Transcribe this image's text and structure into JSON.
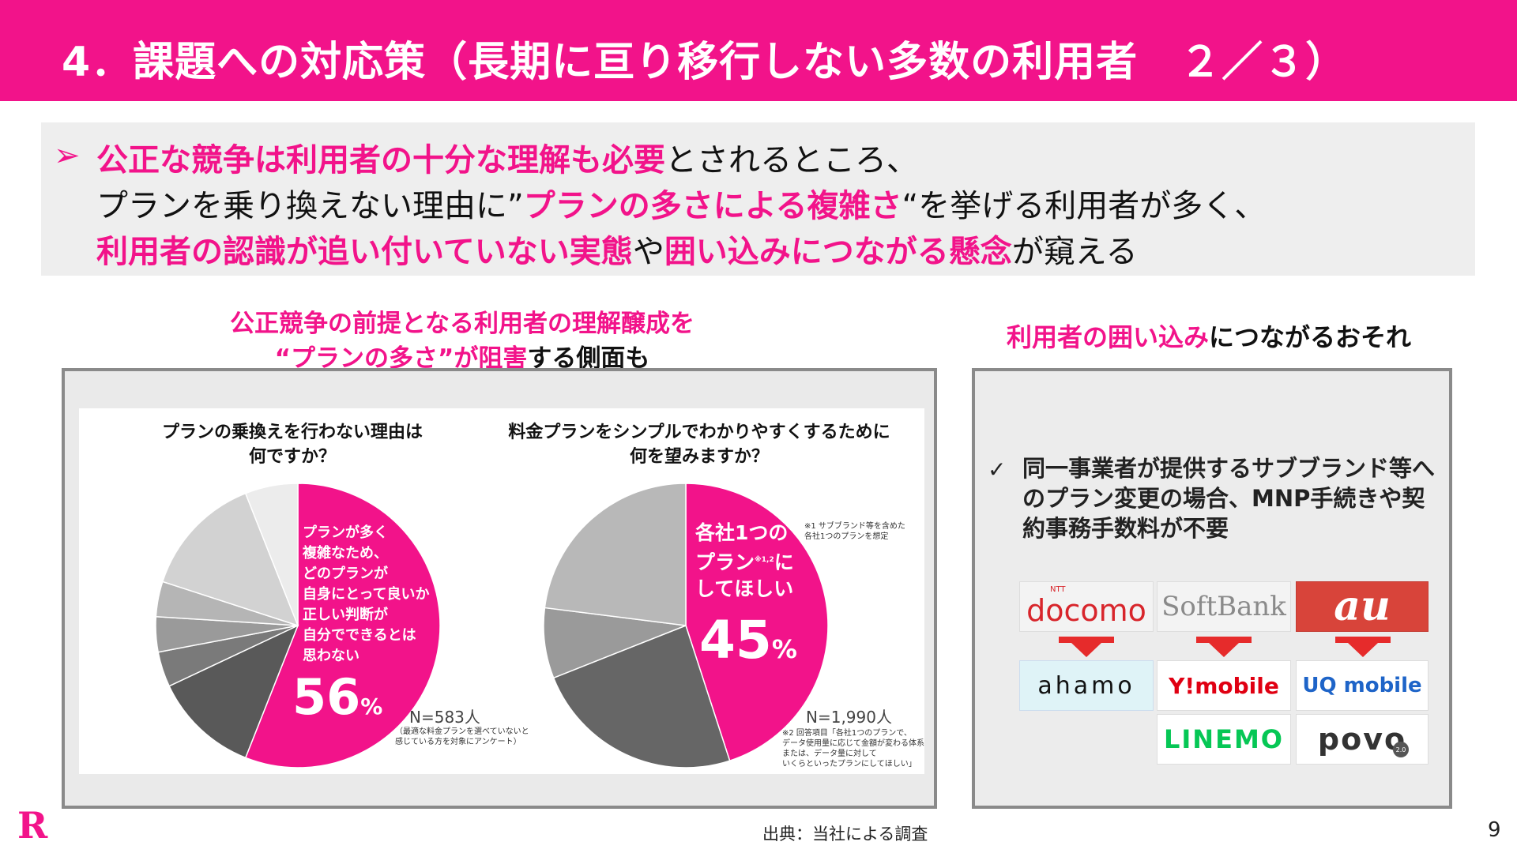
{
  "header": {
    "title": "4．課題への対応策（長期に亘り移行しない多数の利用者　２／３）"
  },
  "summary": {
    "arrow": "➢",
    "line1": [
      {
        "text": "公正な競争は利用者の十分な理解も必要",
        "highlight": true
      },
      {
        "text": "とされるところ、",
        "highlight": false
      }
    ],
    "line2": [
      {
        "text": "プランを乗り換えない理由に”",
        "highlight": false
      },
      {
        "text": "プランの多さによる複雑さ",
        "highlight": true
      },
      {
        "text": "“を挙げる利用者が多く、",
        "highlight": false
      }
    ],
    "line3": [
      {
        "text": "利用者の認識が追い付いていない実態",
        "highlight": true
      },
      {
        "text": "や",
        "highlight": false
      },
      {
        "text": "囲い込みにつながる懸念",
        "highlight": true
      },
      {
        "text": "が窺える",
        "highlight": false
      }
    ]
  },
  "left_panel": {
    "caption_line1": "公正競争の前提となる利用者の理解醸成を",
    "caption_line2_pink": "“プランの多さ”が阻害",
    "caption_line2_black": "する側面も",
    "chart1": {
      "question_line1": "プランの乗換えを行わない理由は",
      "question_line2": "何ですか？",
      "highlight_lines": [
        "プランが多く",
        "複雑なため、",
        "どのプランが",
        "自身にとって良いか",
        "正しい判断が",
        "自分でできるとは",
        "思わない"
      ],
      "percent_number": "56",
      "percent_sign": "%",
      "sample": "N=583人",
      "note_lines": [
        "（最適な料金プランを選べていないと",
        "感じている方を対象にアンケート）"
      ]
    },
    "chart2": {
      "question_line1": "料金プランをシンプルでわかりやすくするために",
      "question_line2": "何を望みますか？",
      "highlight_line1": "各社1つの",
      "highlight_line2": "プラン",
      "highlight_sup": "※1,2",
      "highlight_line2b": "に",
      "highlight_line3": "してほしい",
      "percent_number": "45",
      "percent_sign": "%",
      "sample": "N=1,990人",
      "note1_lines": [
        "※1 サブブランド等を含めた",
        "各社1つのプランを想定"
      ],
      "note2_lines": [
        "※2 回答項目「各社1つのプランで、",
        "データ使用量に応じて金額が変わる体系",
        "または、データ量に対して",
        "いくらといったプランにしてほしい」"
      ]
    }
  },
  "chart_data": [
    {
      "type": "pie",
      "title": "プランの乗換えを行わない理由は何ですか？",
      "slices": [
        {
          "label": "プランが多く複雑なため、どのプランが自身にとって良いか正しい判断が自分でできるとは思わない",
          "value": 56,
          "color": "#f2138a"
        },
        {
          "value": 12,
          "color": "#595959"
        },
        {
          "value": 4,
          "color": "#7a7a7a"
        },
        {
          "value": 4,
          "color": "#9a9a9a"
        },
        {
          "value": 4,
          "color": "#b5b5b5"
        },
        {
          "value": 14,
          "color": "#d2d2d2"
        },
        {
          "value": 6,
          "color": "#ececec"
        }
      ]
    },
    {
      "type": "pie",
      "title": "料金プランをシンプルでわかりやすくするために何を望みますか？",
      "slices": [
        {
          "label": "各社1つのプランにしてほしい",
          "value": 45,
          "color": "#f2138a"
        },
        {
          "value": 24,
          "color": "#666666"
        },
        {
          "value": 8,
          "color": "#9a9a9a"
        },
        {
          "value": 23,
          "color": "#b8b8b8"
        }
      ]
    }
  ],
  "right_panel": {
    "caption_pink": "利用者の囲い込み",
    "caption_black": "につながるおそれ",
    "check_mark": "✓",
    "bullet_lines": [
      "同一事業者が提供するサブブランド等へ",
      "のプラン変更の場合、MNP手続きや契",
      "約事務手数料が不要"
    ],
    "brands": {
      "main": [
        {
          "name": "docomo",
          "small": "NTT"
        },
        {
          "name": "SoftBank"
        },
        {
          "name": "au"
        }
      ],
      "sub": [
        {
          "name": "ahamo"
        },
        {
          "name": "Y!mobile"
        },
        {
          "name": "UQ mobile"
        },
        {
          "name": "LINEMO"
        },
        {
          "name": "povo",
          "badge": "2.0"
        }
      ]
    }
  },
  "footer": {
    "source": "出典：当社による調査",
    "page_number": "9",
    "logo": "R"
  }
}
